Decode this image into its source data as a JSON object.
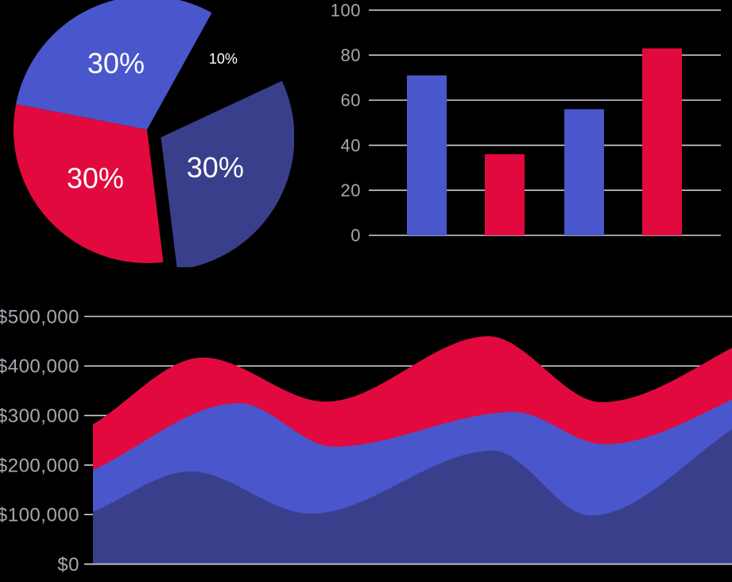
{
  "canvas": {
    "background": "#000000"
  },
  "palette": {
    "blue": "#4A56CC",
    "red": "#E2093E",
    "navy": "#3A3F8C",
    "grid_line": "#D2D0D6",
    "axis_text": "#A9A6B1",
    "pie_label_text": "#FFFFFF"
  },
  "chart_data": [
    {
      "id": "pie",
      "type": "pie",
      "legend": "none",
      "note": "10% slice is a cut-out gap (background shows through); navy 30% slice is exploded",
      "slices": [
        {
          "label": "30%",
          "value": 30,
          "color": "blue",
          "exploded": false
        },
        {
          "label": "30%",
          "value": 30,
          "color": "red",
          "exploded": false
        },
        {
          "label": "30%",
          "value": 30,
          "color": "navy",
          "exploded": true
        },
        {
          "label": "10%",
          "value": 10,
          "color": "background",
          "exploded": false
        }
      ]
    },
    {
      "id": "bars",
      "type": "bar",
      "values": [
        71,
        36,
        56,
        83
      ],
      "bar_colors": [
        "blue",
        "red",
        "blue",
        "red"
      ],
      "ylim": [
        0,
        100
      ],
      "grid": "horizontal",
      "x_labels": "none",
      "y_ticks": [
        {
          "label": "0",
          "value": 0
        },
        {
          "label": "20",
          "value": 20
        },
        {
          "label": "40",
          "value": 40
        },
        {
          "label": "60",
          "value": 60
        },
        {
          "label": "80",
          "value": 80
        },
        {
          "label": "100",
          "value": 100
        }
      ]
    },
    {
      "id": "area",
      "type": "area",
      "ylim": [
        0,
        500000
      ],
      "grid": "horizontal",
      "x_labels": "none",
      "note": "three overlapping wave bands; x is fraction of visible plot width, values >1 mean the wave crests beyond the right crop",
      "y_ticks": [
        {
          "label": "$0",
          "value": 0
        },
        {
          "label": "$100,000",
          "value": 100000
        },
        {
          "label": "$200,000",
          "value": 200000
        },
        {
          "label": "$300,000",
          "value": 300000
        },
        {
          "label": "$400,000",
          "value": 400000
        },
        {
          "label": "$500,000",
          "value": 500000
        }
      ],
      "series": [
        {
          "name": "red-band",
          "color": "red",
          "points": [
            {
              "x": 0,
              "y": 282000
            },
            {
              "x": 0.172,
              "y": 417000
            },
            {
              "x": 0.364,
              "y": 328000
            },
            {
              "x": 0.619,
              "y": 460000
            },
            {
              "x": 0.796,
              "y": 327000
            },
            {
              "x": 1.04,
              "y": 462000
            }
          ]
        },
        {
          "name": "blue-band",
          "color": "blue",
          "points": [
            {
              "x": 0,
              "y": 190000
            },
            {
              "x": 0.228,
              "y": 325000
            },
            {
              "x": 0.377,
              "y": 237000
            },
            {
              "x": 0.659,
              "y": 307000
            },
            {
              "x": 0.8,
              "y": 242000
            },
            {
              "x": 1.06,
              "y": 366000
            }
          ]
        },
        {
          "name": "navy-band",
          "color": "navy",
          "points": [
            {
              "x": 0,
              "y": 106000
            },
            {
              "x": 0.153,
              "y": 187000
            },
            {
              "x": 0.34,
              "y": 102000
            },
            {
              "x": 0.626,
              "y": 229000
            },
            {
              "x": 0.779,
              "y": 98000
            },
            {
              "x": 1.01,
              "y": 280000
            }
          ]
        }
      ]
    }
  ]
}
